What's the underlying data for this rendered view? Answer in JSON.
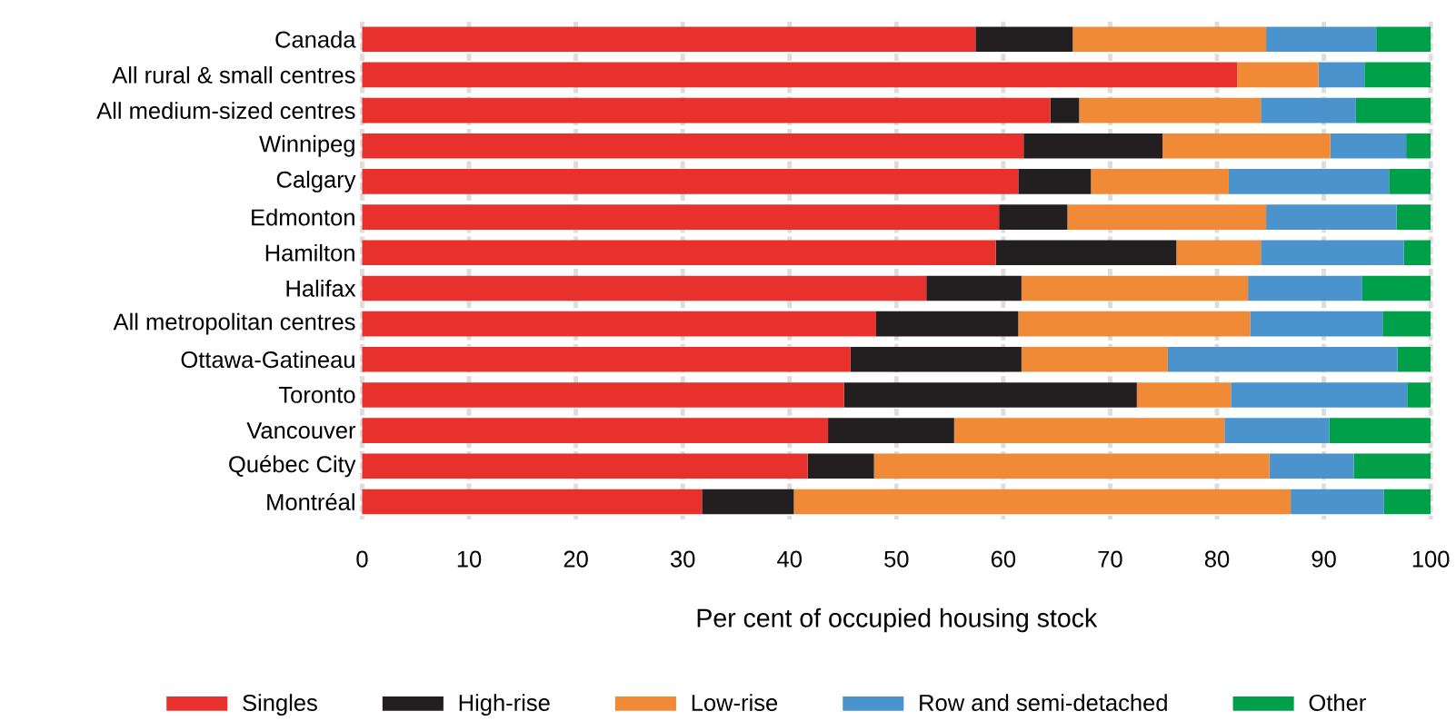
{
  "chart_data": {
    "type": "bar",
    "orientation": "horizontal",
    "stacked": true,
    "categories": [
      "Canada",
      "All rural & small centres",
      "All medium-sized centres",
      "Winnipeg",
      "Calgary",
      "Edmonton",
      "Hamilton",
      "Halifax",
      "All metropolitan centres",
      "Ottawa-Gatineau",
      "Toronto",
      "Vancouver",
      "Québec City",
      "Montréal"
    ],
    "series": [
      {
        "name": "Singles",
        "color": "#e8302d",
        "values": [
          57.4,
          81.9,
          64.4,
          61.9,
          61.4,
          59.6,
          59.3,
          52.8,
          48.1,
          45.7,
          45.1,
          43.6,
          41.7,
          31.8
        ]
      },
      {
        "name": "High-rise",
        "color": "#231f20",
        "values": [
          9.1,
          0,
          2.7,
          13.0,
          6.8,
          6.4,
          16.9,
          8.9,
          13.3,
          16.0,
          27.4,
          11.8,
          6.2,
          8.6
        ]
      },
      {
        "name": "Low-rise",
        "color": "#f08a36",
        "values": [
          18.1,
          7.6,
          17.0,
          15.7,
          12.9,
          18.6,
          7.9,
          21.2,
          21.7,
          13.7,
          8.8,
          25.3,
          37.0,
          46.5
        ]
      },
      {
        "name": "Row and semi-detached",
        "color": "#4a93cc",
        "values": [
          10.3,
          4.3,
          8.9,
          7.1,
          15.0,
          12.2,
          13.4,
          10.7,
          12.4,
          21.5,
          16.5,
          9.8,
          7.9,
          8.7
        ]
      },
      {
        "name": "Other",
        "color": "#00a04b",
        "values": [
          5.2,
          6.2,
          7.0,
          2.3,
          3.9,
          3.2,
          2.5,
          6.4,
          4.5,
          3.1,
          2.2,
          9.5,
          7.2,
          4.4
        ]
      }
    ],
    "xlabel": "Per cent of occupied housing stock",
    "xlim": [
      0,
      100
    ],
    "xticks": [
      0,
      10,
      20,
      30,
      40,
      50,
      60,
      70,
      80,
      90,
      100
    ],
    "grid": "x",
    "legend": "bottom"
  }
}
